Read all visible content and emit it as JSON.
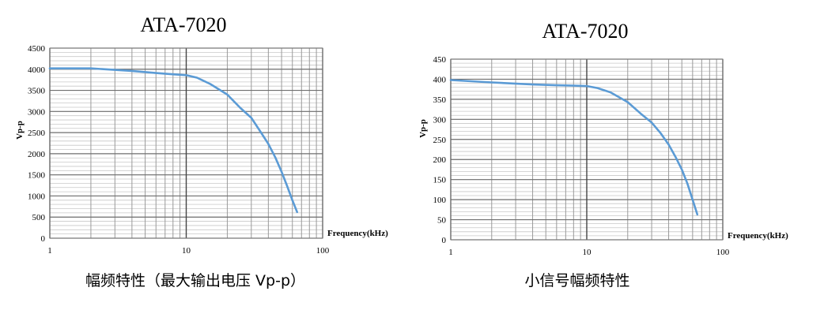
{
  "chart_data": [
    {
      "type": "line",
      "title": "ATA-7020",
      "caption": "幅频特性（最大输出电压 Vp-p）",
      "xlabel": "Frequency(kHz)",
      "ylabel": "Vp-p",
      "xscale": "log",
      "xlim": [
        1,
        100
      ],
      "ylim": [
        0,
        4500
      ],
      "x_ticks": [
        "1",
        "10",
        "100"
      ],
      "y_ticks": [
        "0",
        "500",
        "1000",
        "1500",
        "2000",
        "2500",
        "3000",
        "3500",
        "4000",
        "4500"
      ],
      "grid": true,
      "series_color": "#5B9BD5",
      "series": [
        {
          "x": [
            1,
            2,
            4,
            6,
            8,
            10,
            12,
            15,
            20,
            25,
            30,
            35,
            40,
            45,
            50,
            55,
            60,
            65
          ],
          "y": [
            4020,
            4020,
            3960,
            3910,
            3880,
            3860,
            3800,
            3650,
            3400,
            3080,
            2850,
            2520,
            2230,
            1910,
            1570,
            1230,
            900,
            620
          ]
        }
      ]
    },
    {
      "type": "line",
      "title": "ATA-7020",
      "caption": "小信号幅频特性",
      "xlabel": "Frequency(kHz)",
      "ylabel": "Vp-p",
      "xscale": "log",
      "xlim": [
        1,
        100
      ],
      "ylim": [
        0,
        450
      ],
      "x_ticks": [
        "1",
        "10",
        "100"
      ],
      "y_ticks": [
        "0",
        "50",
        "100",
        "150",
        "200",
        "250",
        "300",
        "350",
        "400",
        "450"
      ],
      "grid": true,
      "series_color": "#5B9BD5",
      "series": [
        {
          "x": [
            1,
            2,
            4,
            6,
            8,
            10,
            12,
            15,
            20,
            25,
            30,
            35,
            40,
            45,
            50,
            55,
            60,
            65
          ],
          "y": [
            398,
            392,
            387,
            385,
            384,
            383,
            378,
            367,
            343,
            314,
            292,
            265,
            237,
            206,
            175,
            140,
            100,
            63
          ]
        }
      ]
    }
  ]
}
